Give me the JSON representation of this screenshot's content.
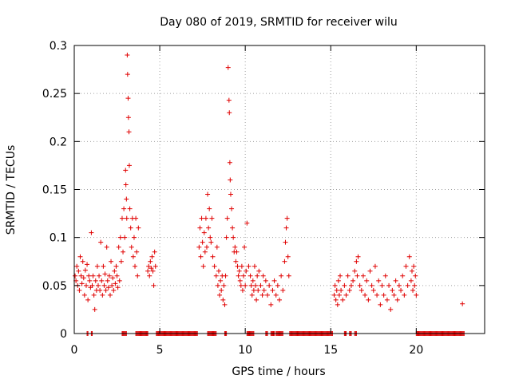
{
  "chart_data": {
    "type": "scatter",
    "title": "Day 080 of 2019, SRMTID for receiver wilu",
    "xlabel": "GPS time / hours",
    "ylabel": "SRMTID / TECUs",
    "xlim": [
      0,
      24
    ],
    "ylim": [
      0,
      0.3
    ],
    "xticks": [
      0,
      5,
      10,
      15,
      20
    ],
    "xtick_labels": [
      "0",
      "5",
      "10",
      "15",
      "20"
    ],
    "yticks": [
      0,
      0.05,
      0.1,
      0.15,
      0.2,
      0.25,
      0.3
    ],
    "ytick_labels": [
      "0",
      "0.05",
      "0.1",
      "0.15",
      "0.2",
      "0.25",
      "0.3"
    ],
    "grid": true,
    "marker": "+",
    "color": "#e00000",
    "series": [
      {
        "name": "SRMTID",
        "points": [
          [
            0.05,
            0.06
          ],
          [
            0.1,
            0.055
          ],
          [
            0.15,
            0.07
          ],
          [
            0.2,
            0.05
          ],
          [
            0.25,
            0.065
          ],
          [
            0.3,
            0.045
          ],
          [
            0.35,
            0.08
          ],
          [
            0.4,
            0.06
          ],
          [
            0.45,
            0.052
          ],
          [
            0.5,
            0.075
          ],
          [
            0.55,
            0.058
          ],
          [
            0.6,
            0.04
          ],
          [
            0.65,
            0.066
          ],
          [
            0.7,
            0.05
          ],
          [
            0.75,
            0.072
          ],
          [
            0.8,
            0.035
          ],
          [
            0.85,
            0.06
          ],
          [
            0.9,
            0.055
          ],
          [
            0.95,
            0.048
          ],
          [
            1.0,
            0.105
          ],
          [
            1.05,
            0.05
          ],
          [
            1.1,
            0.06
          ],
          [
            1.15,
            0.04
          ],
          [
            1.2,
            0.025
          ],
          [
            1.25,
            0.055
          ],
          [
            1.3,
            0.045
          ],
          [
            1.35,
            0.07
          ],
          [
            1.4,
            0.05
          ],
          [
            1.45,
            0.06
          ],
          [
            1.5,
            0.045
          ],
          [
            1.55,
            0.095
          ],
          [
            1.6,
            0.055
          ],
          [
            1.65,
            0.04
          ],
          [
            1.7,
            0.07
          ],
          [
            1.75,
            0.05
          ],
          [
            1.8,
            0.062
          ],
          [
            1.85,
            0.045
          ],
          [
            1.9,
            0.09
          ],
          [
            1.95,
            0.055
          ],
          [
            2.0,
            0.048
          ],
          [
            2.05,
            0.06
          ],
          [
            2.1,
            0.04
          ],
          [
            2.15,
            0.075
          ],
          [
            2.2,
            0.05
          ],
          [
            2.25,
            0.058
          ],
          [
            2.3,
            0.045
          ],
          [
            2.35,
            0.065
          ],
          [
            2.4,
            0.052
          ],
          [
            2.45,
            0.07
          ],
          [
            2.5,
            0.06
          ],
          [
            2.55,
            0.048
          ],
          [
            2.6,
            0.09
          ],
          [
            2.65,
            0.055
          ],
          [
            2.7,
            0.1
          ],
          [
            2.75,
            0.075
          ],
          [
            2.8,
            0.12
          ],
          [
            2.85,
            0.085
          ],
          [
            2.9,
            0.13
          ],
          [
            2.95,
            0.1
          ],
          [
            3.0,
            0.17
          ],
          [
            3.02,
            0.155
          ],
          [
            3.05,
            0.14
          ],
          [
            3.07,
            0.12
          ],
          [
            3.1,
            0.29
          ],
          [
            3.12,
            0.27
          ],
          [
            3.15,
            0.245
          ],
          [
            3.17,
            0.225
          ],
          [
            3.2,
            0.21
          ],
          [
            3.22,
            0.175
          ],
          [
            3.25,
            0.13
          ],
          [
            3.3,
            0.11
          ],
          [
            3.35,
            0.09
          ],
          [
            3.4,
            0.12
          ],
          [
            3.45,
            0.08
          ],
          [
            3.5,
            0.1
          ],
          [
            3.55,
            0.07
          ],
          [
            3.6,
            0.12
          ],
          [
            3.65,
            0.085
          ],
          [
            3.7,
            0.06
          ],
          [
            3.75,
            0.11
          ],
          [
            4.3,
            0.065
          ],
          [
            4.35,
            0.07
          ],
          [
            4.4,
            0.06
          ],
          [
            4.45,
            0.075
          ],
          [
            4.5,
            0.068
          ],
          [
            4.55,
            0.08
          ],
          [
            4.6,
            0.065
          ],
          [
            4.65,
            0.05
          ],
          [
            4.7,
            0.085
          ],
          [
            4.75,
            0.07
          ],
          [
            7.3,
            0.09
          ],
          [
            7.35,
            0.11
          ],
          [
            7.4,
            0.08
          ],
          [
            7.45,
            0.12
          ],
          [
            7.5,
            0.095
          ],
          [
            7.55,
            0.07
          ],
          [
            7.6,
            0.105
          ],
          [
            7.65,
            0.085
          ],
          [
            7.7,
            0.12
          ],
          [
            7.75,
            0.09
          ],
          [
            7.8,
            0.145
          ],
          [
            7.85,
            0.11
          ],
          [
            7.9,
            0.13
          ],
          [
            7.95,
            0.1
          ],
          [
            8.0,
            0.095
          ],
          [
            8.05,
            0.12
          ],
          [
            8.1,
            0.08
          ],
          [
            8.2,
            0.07
          ],
          [
            8.3,
            0.06
          ],
          [
            8.35,
            0.09
          ],
          [
            8.4,
            0.05
          ],
          [
            8.45,
            0.065
          ],
          [
            8.5,
            0.04
          ],
          [
            8.55,
            0.055
          ],
          [
            8.6,
            0.045
          ],
          [
            8.65,
            0.06
          ],
          [
            8.7,
            0.035
          ],
          [
            8.75,
            0.05
          ],
          [
            8.8,
            0.03
          ],
          [
            8.85,
            0.06
          ],
          [
            8.9,
            0.1
          ],
          [
            8.95,
            0.12
          ],
          [
            9.0,
            0.277
          ],
          [
            9.05,
            0.243
          ],
          [
            9.07,
            0.23
          ],
          [
            9.1,
            0.178
          ],
          [
            9.12,
            0.16
          ],
          [
            9.15,
            0.145
          ],
          [
            9.2,
            0.13
          ],
          [
            9.25,
            0.11
          ],
          [
            9.3,
            0.1
          ],
          [
            9.35,
            0.085
          ],
          [
            9.4,
            0.09
          ],
          [
            9.45,
            0.075
          ],
          [
            9.5,
            0.085
          ],
          [
            9.55,
            0.07
          ],
          [
            9.6,
            0.06
          ],
          [
            9.65,
            0.065
          ],
          [
            9.7,
            0.055
          ],
          [
            9.75,
            0.05
          ],
          [
            9.8,
            0.07
          ],
          [
            9.85,
            0.045
          ],
          [
            9.9,
            0.06
          ],
          [
            9.95,
            0.09
          ],
          [
            10.0,
            0.05
          ],
          [
            10.05,
            0.065
          ],
          [
            10.1,
            0.115
          ],
          [
            10.2,
            0.07
          ],
          [
            10.3,
            0.06
          ],
          [
            10.35,
            0.05
          ],
          [
            10.4,
            0.04
          ],
          [
            10.45,
            0.055
          ],
          [
            10.5,
            0.045
          ],
          [
            10.55,
            0.07
          ],
          [
            10.6,
            0.05
          ],
          [
            10.65,
            0.035
          ],
          [
            10.7,
            0.06
          ],
          [
            10.75,
            0.045
          ],
          [
            10.8,
            0.065
          ],
          [
            10.9,
            0.05
          ],
          [
            11.0,
            0.04
          ],
          [
            11.05,
            0.06
          ],
          [
            11.1,
            0.045
          ],
          [
            11.2,
            0.055
          ],
          [
            11.3,
            0.04
          ],
          [
            11.4,
            0.05
          ],
          [
            11.5,
            0.03
          ],
          [
            11.6,
            0.045
          ],
          [
            11.7,
            0.055
          ],
          [
            11.8,
            0.04
          ],
          [
            11.9,
            0.05
          ],
          [
            12.0,
            0.035
          ],
          [
            12.1,
            0.06
          ],
          [
            12.2,
            0.045
          ],
          [
            12.3,
            0.075
          ],
          [
            12.35,
            0.095
          ],
          [
            12.4,
            0.11
          ],
          [
            12.45,
            0.12
          ],
          [
            12.5,
            0.08
          ],
          [
            12.55,
            0.06
          ],
          [
            15.2,
            0.04
          ],
          [
            15.25,
            0.05
          ],
          [
            15.3,
            0.035
          ],
          [
            15.35,
            0.045
          ],
          [
            15.4,
            0.03
          ],
          [
            15.45,
            0.055
          ],
          [
            15.5,
            0.04
          ],
          [
            15.55,
            0.06
          ],
          [
            15.6,
            0.045
          ],
          [
            15.7,
            0.035
          ],
          [
            15.8,
            0.05
          ],
          [
            15.9,
            0.04
          ],
          [
            16.0,
            0.06
          ],
          [
            16.1,
            0.045
          ],
          [
            16.2,
            0.05
          ],
          [
            16.3,
            0.055
          ],
          [
            16.4,
            0.065
          ],
          [
            16.5,
            0.075
          ],
          [
            16.55,
            0.06
          ],
          [
            16.6,
            0.08
          ],
          [
            16.7,
            0.05
          ],
          [
            16.8,
            0.045
          ],
          [
            16.9,
            0.06
          ],
          [
            17.0,
            0.04
          ],
          [
            17.1,
            0.055
          ],
          [
            17.2,
            0.035
          ],
          [
            17.3,
            0.065
          ],
          [
            17.4,
            0.05
          ],
          [
            17.5,
            0.045
          ],
          [
            17.6,
            0.07
          ],
          [
            17.7,
            0.04
          ],
          [
            17.8,
            0.055
          ],
          [
            17.9,
            0.03
          ],
          [
            18.0,
            0.05
          ],
          [
            18.1,
            0.04
          ],
          [
            18.2,
            0.06
          ],
          [
            18.3,
            0.035
          ],
          [
            18.4,
            0.05
          ],
          [
            18.5,
            0.025
          ],
          [
            18.6,
            0.045
          ],
          [
            18.7,
            0.04
          ],
          [
            18.8,
            0.055
          ],
          [
            18.9,
            0.035
          ],
          [
            19.0,
            0.05
          ],
          [
            19.1,
            0.045
          ],
          [
            19.2,
            0.06
          ],
          [
            19.3,
            0.04
          ],
          [
            19.4,
            0.07
          ],
          [
            19.5,
            0.05
          ],
          [
            19.6,
            0.08
          ],
          [
            19.7,
            0.055
          ],
          [
            19.75,
            0.065
          ],
          [
            19.8,
            0.045
          ],
          [
            19.85,
            0.07
          ],
          [
            19.9,
            0.05
          ],
          [
            19.95,
            0.06
          ],
          [
            20.0,
            0.04
          ],
          [
            22.7,
            0.031
          ]
        ]
      },
      {
        "name": "zero",
        "x_ranges": [
          [
            0.75,
            0.8
          ],
          [
            1.0,
            1.05
          ],
          [
            2.8,
            3.05
          ],
          [
            3.6,
            4.3
          ],
          [
            4.8,
            7.2
          ],
          [
            7.8,
            8.3
          ],
          [
            8.8,
            8.9
          ],
          [
            10.1,
            10.5
          ],
          [
            11.2,
            11.3
          ],
          [
            11.5,
            11.7
          ],
          [
            11.8,
            12.2
          ],
          [
            12.6,
            15.1
          ],
          [
            15.8,
            15.9
          ],
          [
            16.1,
            16.2
          ],
          [
            16.4,
            16.5
          ],
          [
            20.0,
            22.8
          ]
        ],
        "y": 0
      }
    ]
  }
}
